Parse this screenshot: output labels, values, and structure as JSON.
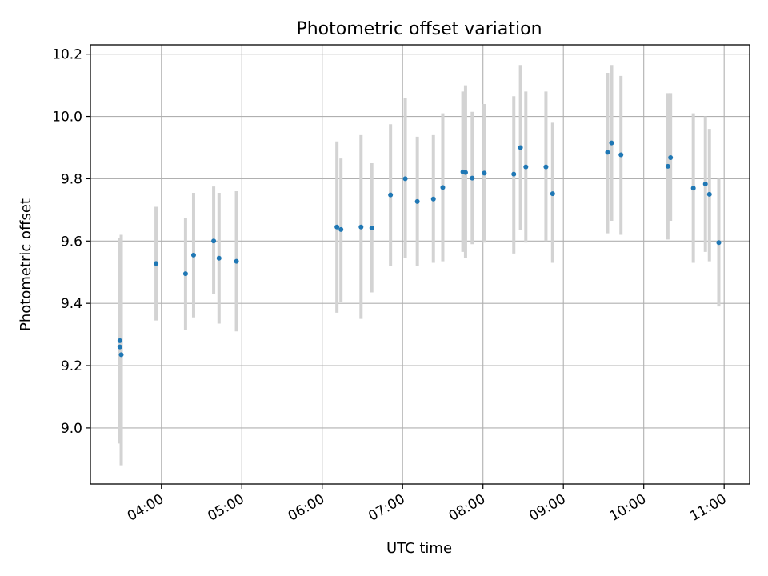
{
  "chart_data": {
    "type": "scatter",
    "title": "Photometric offset variation",
    "xlabel": "UTC time",
    "ylabel": "Photometric offset",
    "x_ticks": [
      "04:00",
      "05:00",
      "06:00",
      "07:00",
      "08:00",
      "09:00",
      "10:00",
      "11:00"
    ],
    "y_ticks": [
      "9.0",
      "9.2",
      "9.4",
      "9.6",
      "9.8",
      "10.0",
      "10.2"
    ],
    "xlim": [
      "03:07",
      "11:19"
    ],
    "ylim": [
      8.82,
      10.23
    ],
    "grid": true,
    "colors": {
      "point": "#1f77b4",
      "errorbar": "#d3d3d3",
      "grid": "#b0b0b0"
    },
    "points": [
      {
        "x": "03:29",
        "y": 9.28,
        "lo": 8.95,
        "hi": 9.61
      },
      {
        "x": "03:29",
        "y": 9.26,
        "lo": 8.96,
        "hi": 9.59
      },
      {
        "x": "03:30",
        "y": 9.235,
        "lo": 8.88,
        "hi": 9.62
      },
      {
        "x": "03:56",
        "y": 9.528,
        "lo": 9.345,
        "hi": 9.71
      },
      {
        "x": "04:18",
        "y": 9.495,
        "lo": 9.315,
        "hi": 9.675
      },
      {
        "x": "04:24",
        "y": 9.555,
        "lo": 9.355,
        "hi": 9.755
      },
      {
        "x": "04:39",
        "y": 9.6,
        "lo": 9.43,
        "hi": 9.775
      },
      {
        "x": "04:43",
        "y": 9.545,
        "lo": 9.335,
        "hi": 9.755
      },
      {
        "x": "04:56",
        "y": 9.535,
        "lo": 9.31,
        "hi": 9.76
      },
      {
        "x": "06:11",
        "y": 9.645,
        "lo": 9.37,
        "hi": 9.92
      },
      {
        "x": "06:14",
        "y": 9.637,
        "lo": 9.405,
        "hi": 9.865
      },
      {
        "x": "06:29",
        "y": 9.645,
        "lo": 9.35,
        "hi": 9.94
      },
      {
        "x": "06:37",
        "y": 9.642,
        "lo": 9.435,
        "hi": 9.85
      },
      {
        "x": "06:51",
        "y": 9.748,
        "lo": 9.52,
        "hi": 9.975
      },
      {
        "x": "07:02",
        "y": 9.8,
        "lo": 9.545,
        "hi": 10.06
      },
      {
        "x": "07:11",
        "y": 9.727,
        "lo": 9.52,
        "hi": 9.935
      },
      {
        "x": "07:23",
        "y": 9.735,
        "lo": 9.53,
        "hi": 9.94
      },
      {
        "x": "07:30",
        "y": 9.772,
        "lo": 9.535,
        "hi": 10.01
      },
      {
        "x": "07:45",
        "y": 9.822,
        "lo": 9.565,
        "hi": 10.08
      },
      {
        "x": "07:47",
        "y": 9.82,
        "lo": 9.545,
        "hi": 10.1
      },
      {
        "x": "07:52",
        "y": 9.802,
        "lo": 9.59,
        "hi": 10.015
      },
      {
        "x": "08:01",
        "y": 9.818,
        "lo": 9.595,
        "hi": 10.04
      },
      {
        "x": "08:23",
        "y": 9.815,
        "lo": 9.56,
        "hi": 10.065
      },
      {
        "x": "08:28",
        "y": 9.9,
        "lo": 9.635,
        "hi": 10.165
      },
      {
        "x": "08:32",
        "y": 9.838,
        "lo": 9.595,
        "hi": 10.08
      },
      {
        "x": "08:47",
        "y": 9.838,
        "lo": 9.6,
        "hi": 10.08
      },
      {
        "x": "08:52",
        "y": 9.752,
        "lo": 9.53,
        "hi": 9.98
      },
      {
        "x": "09:33",
        "y": 9.885,
        "lo": 9.625,
        "hi": 10.14
      },
      {
        "x": "09:36",
        "y": 9.915,
        "lo": 9.665,
        "hi": 10.165
      },
      {
        "x": "09:43",
        "y": 9.877,
        "lo": 9.62,
        "hi": 10.13
      },
      {
        "x": "10:18",
        "y": 9.84,
        "lo": 9.605,
        "hi": 10.075
      },
      {
        "x": "10:20",
        "y": 9.868,
        "lo": 9.665,
        "hi": 10.075
      },
      {
        "x": "10:37",
        "y": 9.77,
        "lo": 9.53,
        "hi": 10.01
      },
      {
        "x": "10:46",
        "y": 9.783,
        "lo": 9.565,
        "hi": 10.0
      },
      {
        "x": "10:49",
        "y": 9.75,
        "lo": 9.535,
        "hi": 9.96
      },
      {
        "x": "10:56",
        "y": 9.595,
        "lo": 9.39,
        "hi": 9.8
      }
    ]
  }
}
